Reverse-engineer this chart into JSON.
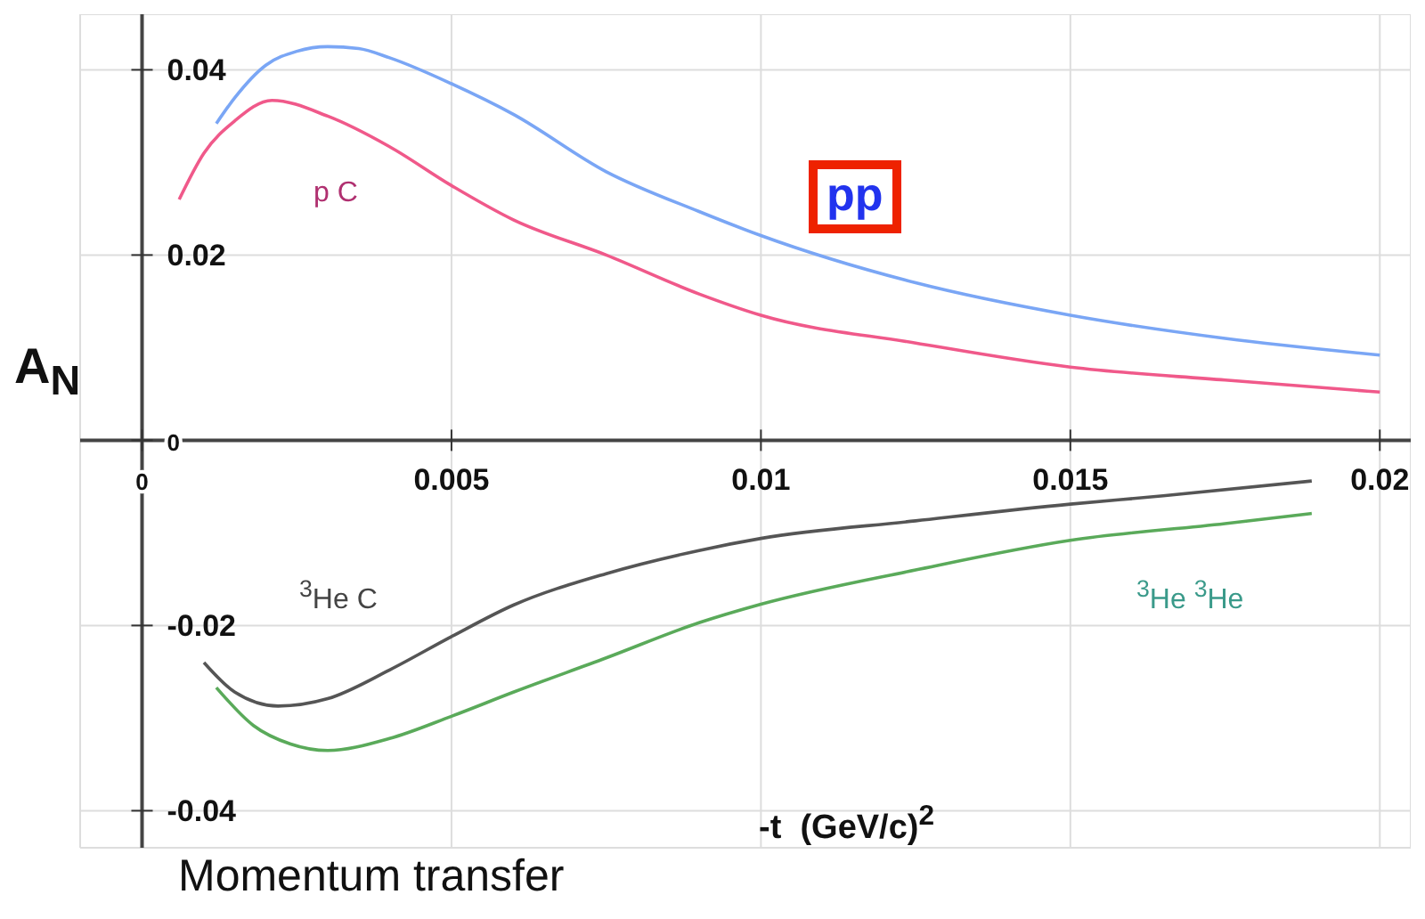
{
  "chart_data": {
    "type": "line",
    "xlabel": "-t  (GeV/c)$^{2}$",
    "ylabel": "A$_{N}$",
    "annotations": [
      "Momentum transfer"
    ],
    "xlim": [
      -0.001,
      0.0205
    ],
    "ylim": [
      -0.044,
      0.046
    ],
    "xticks": [
      0,
      0.005,
      0.01,
      0.015,
      0.02
    ],
    "yticks": [
      -0.04,
      -0.02,
      0,
      0.02,
      0.04
    ],
    "grid": true,
    "marker": "none",
    "line_style": "solid",
    "series": [
      {
        "name": "pp",
        "color": "#7aa6f5",
        "x": [
          0.0012,
          0.0015,
          0.002,
          0.0025,
          0.003,
          0.0035,
          0.004,
          0.005,
          0.006,
          0.0075,
          0.009,
          0.01,
          0.0125,
          0.015,
          0.0175,
          0.02
        ],
        "values": [
          0.0342,
          0.037,
          0.0405,
          0.042,
          0.0425,
          0.0423,
          0.0413,
          0.0385,
          0.0352,
          0.029,
          0.0247,
          0.0221,
          0.017,
          0.0135,
          0.011,
          0.0092
        ]
      },
      {
        "name": "p C",
        "color": "#f0598a",
        "x": [
          0.0006,
          0.001,
          0.0015,
          0.0021,
          0.003,
          0.004,
          0.005,
          0.006,
          0.0075,
          0.009,
          0.01,
          0.0125,
          0.015,
          0.0175,
          0.02
        ],
        "values": [
          0.026,
          0.031,
          0.0345,
          0.0367,
          0.035,
          0.0317,
          0.0275,
          0.0238,
          0.02,
          0.0158,
          0.0135,
          0.0105,
          0.0079,
          0.0065,
          0.0052
        ]
      },
      {
        "name": "$^{3}$He C",
        "color": "#555555",
        "x": [
          0.001,
          0.0015,
          0.0022,
          0.003,
          0.004,
          0.005,
          0.006,
          0.0075,
          0.009,
          0.01,
          0.0125,
          0.015,
          0.0165,
          0.0189
        ],
        "values": [
          -0.024,
          -0.0272,
          -0.0287,
          -0.0279,
          -0.0248,
          -0.0212,
          -0.0178,
          -0.0144,
          -0.0119,
          -0.0106,
          -0.0087,
          -0.0069,
          -0.006,
          -0.0044
        ]
      },
      {
        "name": "$^{3}$He $^{3}$He",
        "color": "#5aaa5a",
        "x": [
          0.0012,
          0.0018,
          0.0024,
          0.003,
          0.004,
          0.005,
          0.006,
          0.0075,
          0.009,
          0.01,
          0.0125,
          0.015,
          0.0175,
          0.0189
        ],
        "values": [
          -0.0267,
          -0.0308,
          -0.0328,
          -0.0335,
          -0.0322,
          -0.0298,
          -0.0272,
          -0.0235,
          -0.0197,
          -0.0177,
          -0.014,
          -0.0108,
          -0.009,
          -0.0079
        ]
      }
    ]
  }
}
